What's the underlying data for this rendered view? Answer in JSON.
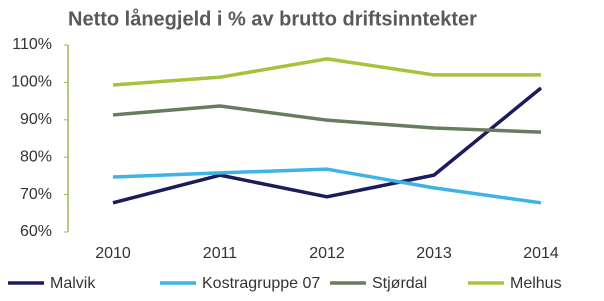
{
  "chart_data": {
    "type": "line",
    "title": "Netto lånegjeld i % av brutto driftsinntekter",
    "categories": [
      "2010",
      "2011",
      "2012",
      "2013",
      "2014"
    ],
    "series": [
      {
        "name": "Malvik",
        "color": "#1c1c5c",
        "values": [
          67.8,
          75.2,
          69.4,
          75.2,
          98.5
        ]
      },
      {
        "name": "Kostragruppe 07",
        "color": "#3fb2e6",
        "values": [
          74.7,
          75.8,
          76.8,
          71.8,
          67.8
        ]
      },
      {
        "name": "Stjørdal",
        "color": "#687c5e",
        "values": [
          91.3,
          93.7,
          89.9,
          87.8,
          86.7
        ]
      },
      {
        "name": "Melhus",
        "color": "#a6c33c",
        "values": [
          99.3,
          101.4,
          106.3,
          102.0,
          102.0
        ]
      }
    ],
    "ylim": [
      60,
      110
    ],
    "yticks": [
      {
        "value": 60,
        "label": "60%"
      },
      {
        "value": 70,
        "label": "70%"
      },
      {
        "value": 80,
        "label": "80%"
      },
      {
        "value": 90,
        "label": "90%"
      },
      {
        "value": 100,
        "label": "100%"
      },
      {
        "value": 110,
        "label": "110%"
      }
    ],
    "grid": false,
    "legend": "bottom"
  }
}
